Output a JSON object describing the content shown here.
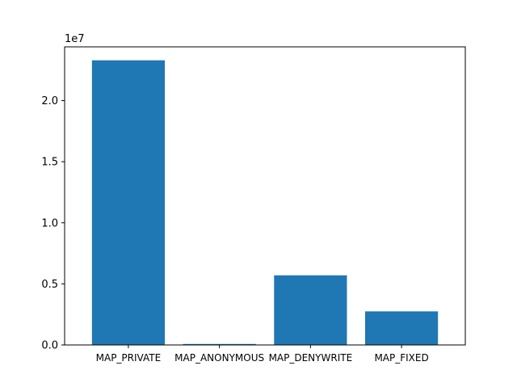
{
  "chart_data": {
    "type": "bar",
    "title": "",
    "xlabel": "",
    "ylabel": "",
    "categories": [
      "MAP_PRIVATE",
      "MAP_ANONYMOUS",
      "MAP_DENYWRITE",
      "MAP_FIXED"
    ],
    "values": [
      23300000,
      80000,
      5700000,
      2750000
    ],
    "ylim": [
      0,
      24400000
    ],
    "yticks": [
      0,
      5000000,
      10000000,
      15000000,
      20000000
    ],
    "ytick_labels": [
      "0.0",
      "0.5",
      "1.0",
      "1.5",
      "2.0"
    ],
    "y_offset_label": "1e7",
    "bar_color": "#1f77b4",
    "grid": false,
    "legend": "none"
  }
}
